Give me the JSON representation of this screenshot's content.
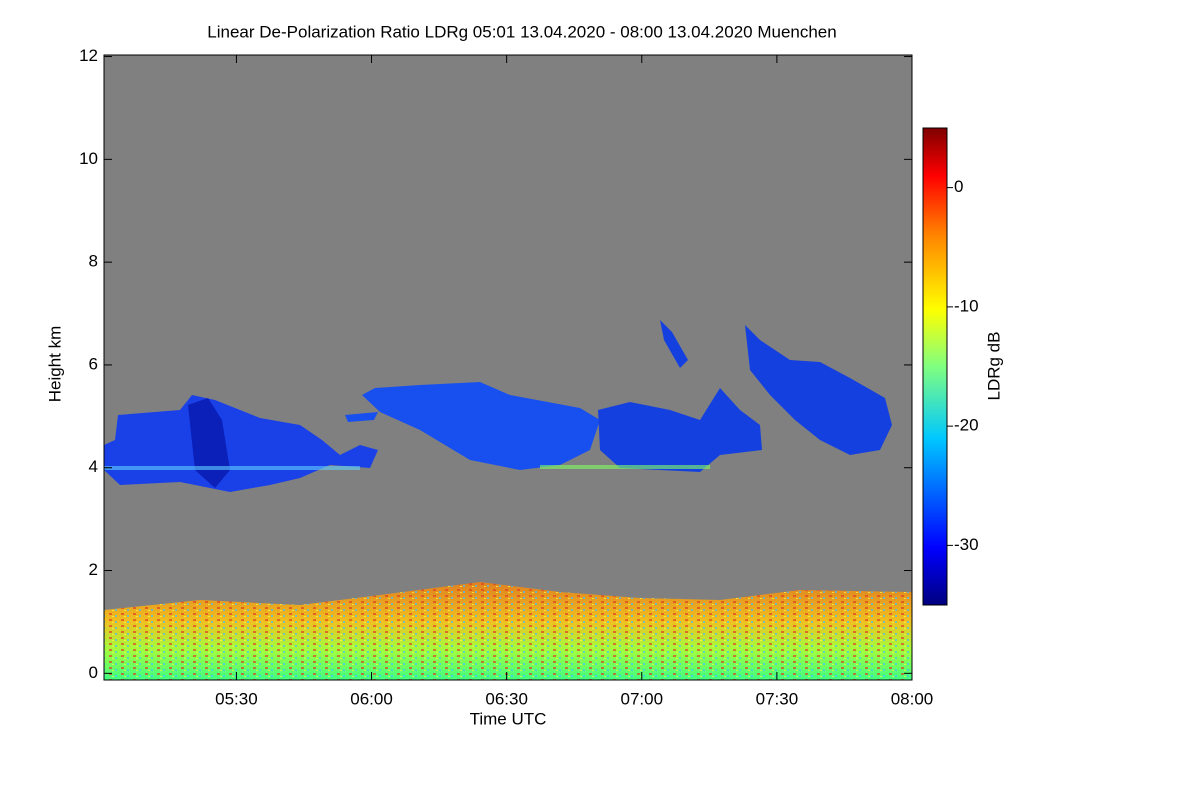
{
  "chart_data": {
    "type": "heatmap",
    "title": "Linear De-Polarization Ratio LDRg   05:01 13.04.2020 - 08:00 13.04.2020 Muenchen",
    "x_label": "Time UTC",
    "y_label": "Height km",
    "colorbar_label": "LDRg dB",
    "xlim": [
      5.01,
      8.0
    ],
    "xticks": [
      {
        "value": 5.5,
        "label": "05:30"
      },
      {
        "value": 6.0,
        "label": "06:00"
      },
      {
        "value": 6.5,
        "label": "06:30"
      },
      {
        "value": 7.0,
        "label": "07:00"
      },
      {
        "value": 7.5,
        "label": "07:30"
      },
      {
        "value": 8.0,
        "label": "08:00"
      }
    ],
    "ylim": [
      -0.13,
      12.03
    ],
    "yticks": [
      0,
      2,
      4,
      6,
      8,
      10,
      12
    ],
    "clim": [
      -35,
      5
    ],
    "cticks": [
      0,
      -10,
      -20,
      -30
    ]
  }
}
